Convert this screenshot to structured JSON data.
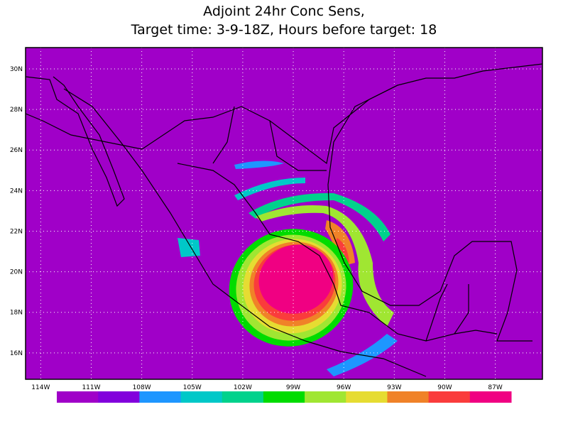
{
  "title": [
    "Adjoint 24hr Conc Sens,",
    "Target time: 3-9-18Z, Hours before target: 18"
  ],
  "map": {
    "background": "#a000c8",
    "xlim": [
      -114.9,
      -84.2
    ],
    "ylim": [
      14.7,
      31.05
    ],
    "xticks": [
      {
        "value": -114,
        "label": "114W"
      },
      {
        "value": -111,
        "label": "111W"
      },
      {
        "value": -108,
        "label": "108W"
      },
      {
        "value": -105,
        "label": "105W"
      },
      {
        "value": -102,
        "label": "102W"
      },
      {
        "value": -99,
        "label": "99W"
      },
      {
        "value": -96,
        "label": "96W"
      },
      {
        "value": -93,
        "label": "93W"
      },
      {
        "value": -90,
        "label": "90W"
      },
      {
        "value": -87,
        "label": "87W"
      }
    ],
    "yticks": [
      {
        "value": 16,
        "label": "16N"
      },
      {
        "value": 18,
        "label": "18N"
      },
      {
        "value": 20,
        "label": "20N"
      },
      {
        "value": 22,
        "label": "22N"
      },
      {
        "value": 24,
        "label": "24N"
      },
      {
        "value": 26,
        "label": "26N"
      },
      {
        "value": 28,
        "label": "28N"
      },
      {
        "value": 30,
        "label": "30N"
      }
    ],
    "grid": true
  },
  "colorbar": {
    "colors": [
      "#a000c8",
      "#8200dc",
      "#1e96ff",
      "#00c8c8",
      "#00d28c",
      "#00dc00",
      "#a0e632",
      "#e6dc32",
      "#f08228",
      "#fa3c3c",
      "#f00082"
    ]
  }
}
